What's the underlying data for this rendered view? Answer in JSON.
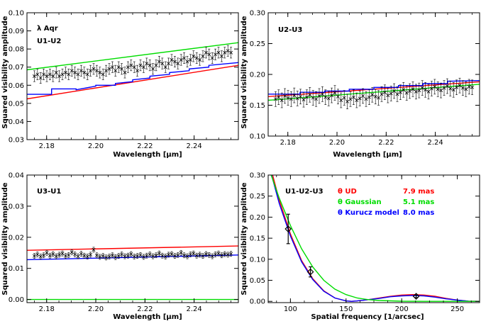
{
  "chart_data": [
    {
      "type": "line",
      "panel": "U1-U2",
      "annotations": [
        "λ Aqr",
        "U1-U2"
      ],
      "xlabel": "Wavelength [μm]",
      "ylabel": "Squared visibility amplitude",
      "xlim": [
        2.172,
        2.258
      ],
      "ylim": [
        0.03,
        0.1
      ],
      "xticks": [
        "2.18",
        "2.20",
        "2.22",
        "2.24"
      ],
      "yticks": [
        "0.03",
        "0.04",
        "0.05",
        "0.06",
        "0.07",
        "0.08",
        "0.09",
        "0.10"
      ],
      "series": [
        {
          "kind": "line",
          "color": "#00dd00",
          "x": [
            2.172,
            2.258
          ],
          "y": [
            0.0685,
            0.0835
          ]
        },
        {
          "kind": "line",
          "color": "#ff0000",
          "x": [
            2.172,
            2.258
          ],
          "y": [
            0.0525,
            0.071
          ]
        },
        {
          "kind": "step",
          "color": "#0000ff",
          "x": [
            2.172,
            2.182,
            2.182,
            2.192,
            2.192,
            2.2,
            2.2,
            2.208,
            2.208,
            2.215,
            2.215,
            2.222,
            2.222,
            2.23,
            2.23,
            2.238,
            2.238,
            2.246,
            2.246,
            2.258
          ],
          "y": [
            0.055,
            0.055,
            0.058,
            0.058,
            0.0575,
            0.0595,
            0.06,
            0.06,
            0.061,
            0.062,
            0.063,
            0.064,
            0.065,
            0.066,
            0.067,
            0.068,
            0.069,
            0.07,
            0.071,
            0.0725
          ]
        },
        {
          "kind": "errorpoints",
          "color": "#000000",
          "x0": 2.175,
          "x1": 2.255,
          "n": 64,
          "y": [
            0.065,
            0.066,
            0.064,
            0.066,
            0.065,
            0.066,
            0.065,
            0.067,
            0.065,
            0.066,
            0.067,
            0.066,
            0.068,
            0.067,
            0.066,
            0.068,
            0.067,
            0.066,
            0.068,
            0.069,
            0.068,
            0.067,
            0.066,
            0.068,
            0.069,
            0.07,
            0.068,
            0.07,
            0.069,
            0.067,
            0.07,
            0.071,
            0.07,
            0.068,
            0.071,
            0.07,
            0.072,
            0.071,
            0.069,
            0.071,
            0.073,
            0.072,
            0.07,
            0.072,
            0.074,
            0.073,
            0.072,
            0.074,
            0.075,
            0.073,
            0.074,
            0.076,
            0.075,
            0.074,
            0.076,
            0.078,
            0.077,
            0.075,
            0.077,
            0.078,
            0.076,
            0.078,
            0.079,
            0.078
          ],
          "err": 0.003
        }
      ]
    },
    {
      "type": "line",
      "panel": "U2-U3",
      "annotations": [
        "U2-U3"
      ],
      "xlabel": "Wavelength [μm]",
      "ylabel": "Squared visibility amplitude",
      "xlim": [
        2.172,
        2.258
      ],
      "ylim": [
        0.1,
        0.3
      ],
      "xticks": [
        "2.18",
        "2.20",
        "2.22",
        "2.24"
      ],
      "yticks": [
        "0.10",
        "0.15",
        "0.20",
        "0.25",
        "0.30"
      ],
      "series": [
        {
          "kind": "line",
          "color": "#00dd00",
          "x": [
            2.172,
            2.258
          ],
          "y": [
            0.158,
            0.184
          ]
        },
        {
          "kind": "line",
          "color": "#ff0000",
          "x": [
            2.172,
            2.258
          ],
          "y": [
            0.164,
            0.188
          ]
        },
        {
          "kind": "step",
          "color": "#0000ff",
          "x": [
            2.172,
            2.185,
            2.185,
            2.195,
            2.195,
            2.205,
            2.205,
            2.215,
            2.215,
            2.225,
            2.225,
            2.235,
            2.235,
            2.245,
            2.245,
            2.258
          ],
          "y": [
            0.168,
            0.168,
            0.171,
            0.171,
            0.173,
            0.173,
            0.176,
            0.176,
            0.179,
            0.179,
            0.182,
            0.182,
            0.185,
            0.185,
            0.189,
            0.19
          ]
        },
        {
          "kind": "errorpoints",
          "color": "#000000",
          "x0": 2.175,
          "x1": 2.255,
          "n": 64,
          "y": [
            0.16,
            0.163,
            0.158,
            0.165,
            0.162,
            0.16,
            0.166,
            0.161,
            0.164,
            0.159,
            0.163,
            0.167,
            0.162,
            0.16,
            0.165,
            0.168,
            0.163,
            0.161,
            0.166,
            0.17,
            0.164,
            0.158,
            0.162,
            0.156,
            0.16,
            0.163,
            0.158,
            0.161,
            0.165,
            0.16,
            0.163,
            0.167,
            0.164,
            0.162,
            0.168,
            0.171,
            0.166,
            0.169,
            0.173,
            0.168,
            0.171,
            0.175,
            0.17,
            0.173,
            0.176,
            0.172,
            0.174,
            0.178,
            0.175,
            0.172,
            0.177,
            0.18,
            0.176,
            0.174,
            0.178,
            0.181,
            0.177,
            0.175,
            0.179,
            0.182,
            0.178,
            0.176,
            0.18,
            0.179
          ],
          "err": 0.012
        }
      ]
    },
    {
      "type": "line",
      "panel": "U3-U1",
      "annotations": [
        "U3-U1"
      ],
      "xlabel": "Wavelength [μm]",
      "ylabel": "Squared visibility amplitude",
      "xlim": [
        2.172,
        2.258
      ],
      "ylim": [
        -0.001,
        0.04
      ],
      "xticks": [
        "2.18",
        "2.20",
        "2.22",
        "2.24"
      ],
      "yticks": [
        "0.00",
        "0.01",
        "0.02",
        "0.03",
        "0.04"
      ],
      "series": [
        {
          "kind": "line",
          "color": "#ff0000",
          "x": [
            2.172,
            2.258
          ],
          "y": [
            0.0158,
            0.0172
          ]
        },
        {
          "kind": "line",
          "color": "#0000ff",
          "x": [
            2.172,
            2.258
          ],
          "y": [
            0.0128,
            0.0143
          ]
        },
        {
          "kind": "line",
          "color": "#00dd00",
          "x": [
            2.172,
            2.258
          ],
          "y": [
            0.0,
            0.0
          ]
        },
        {
          "kind": "errorpoints",
          "color": "#000000",
          "x0": 2.175,
          "x1": 2.255,
          "n": 64,
          "y": [
            0.014,
            0.0145,
            0.0138,
            0.0142,
            0.015,
            0.0141,
            0.0146,
            0.0139,
            0.0144,
            0.0148,
            0.014,
            0.0143,
            0.0152,
            0.0145,
            0.0139,
            0.0147,
            0.0141,
            0.0138,
            0.0144,
            0.016,
            0.0142,
            0.0137,
            0.014,
            0.0135,
            0.0138,
            0.0142,
            0.0136,
            0.014,
            0.0145,
            0.0139,
            0.0141,
            0.0146,
            0.0138,
            0.014,
            0.0143,
            0.0137,
            0.0141,
            0.0145,
            0.0139,
            0.0142,
            0.0148,
            0.0141,
            0.0138,
            0.0144,
            0.0146,
            0.014,
            0.0143,
            0.015,
            0.0142,
            0.0139,
            0.0145,
            0.0148,
            0.0141,
            0.0144,
            0.014,
            0.0146,
            0.0143,
            0.0139,
            0.0145,
            0.0148,
            0.0142,
            0.0146,
            0.0144,
            0.0147
          ],
          "err": 0.0008
        }
      ]
    },
    {
      "type": "line",
      "panel": "U1-U2-U3",
      "annotations": [
        "U1-U2-U3"
      ],
      "xlabel": "Spatial frequency [1/arcsec]",
      "ylabel": "Squared visibility amplitude",
      "xlim": [
        80,
        270
      ],
      "ylim": [
        -0.003,
        0.3
      ],
      "xticks": [
        "100",
        "150",
        "200",
        "250"
      ],
      "yticks": [
        "0.00",
        "0.05",
        "0.10",
        "0.15",
        "0.20",
        "0.25",
        "0.30"
      ],
      "legend": {
        "labels": [
          "θ UD",
          "θ Gaussian",
          "θ Kurucz model"
        ],
        "values": [
          "7.9 mas",
          "5.1 mas",
          "8.0 mas"
        ],
        "colors": [
          "#ff0000",
          "#00dd00",
          "#0000ff"
        ],
        "placement": "top-right"
      },
      "series": [
        {
          "kind": "line",
          "color": "#ff0000",
          "x": [
            80,
            90,
            100,
            110,
            120,
            130,
            140,
            150,
            155,
            160,
            170,
            180,
            190,
            200,
            210,
            220,
            230,
            240,
            250,
            260,
            270
          ],
          "y": [
            0.34,
            0.24,
            0.16,
            0.097,
            0.054,
            0.025,
            0.008,
            0.001,
            0.0,
            0.001,
            0.004,
            0.008,
            0.012,
            0.015,
            0.016,
            0.015,
            0.012,
            0.007,
            0.003,
            0.0005,
            0.0
          ]
        },
        {
          "kind": "line",
          "color": "#0000ff",
          "x": [
            80,
            90,
            100,
            110,
            120,
            130,
            140,
            150,
            155,
            160,
            170,
            180,
            190,
            200,
            210,
            220,
            230,
            240,
            250,
            260,
            270
          ],
          "y": [
            0.33,
            0.232,
            0.155,
            0.094,
            0.052,
            0.024,
            0.008,
            0.001,
            0.0,
            0.001,
            0.004,
            0.007,
            0.011,
            0.013,
            0.014,
            0.013,
            0.01,
            0.006,
            0.003,
            0.0005,
            0.0
          ]
        },
        {
          "kind": "line",
          "color": "#00dd00",
          "x": [
            80,
            90,
            100,
            110,
            120,
            130,
            140,
            150,
            160,
            170,
            180,
            200,
            220,
            250,
            270
          ],
          "y": [
            0.32,
            0.245,
            0.18,
            0.125,
            0.082,
            0.05,
            0.029,
            0.016,
            0.008,
            0.004,
            0.002,
            0.0004,
            0.0001,
            0.0,
            0.0
          ]
        },
        {
          "kind": "points",
          "color": "#000000",
          "marker": "diamond",
          "x": [
            98,
            118,
            213
          ],
          "y": [
            0.172,
            0.07,
            0.012
          ],
          "err": [
            0.035,
            0.012,
            0.003
          ]
        }
      ]
    }
  ]
}
